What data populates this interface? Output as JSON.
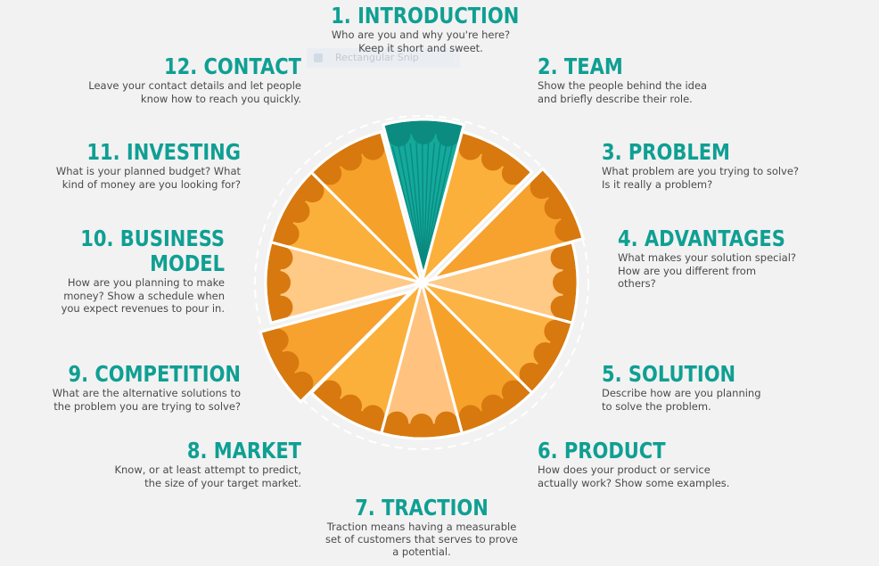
{
  "overlay": {
    "tooltip": "Rectangular Snip"
  },
  "steps": [
    {
      "title": "1. INTRODUCTION",
      "desc": "Who are you and why you're here?\nKeep it short and sweet."
    },
    {
      "title": "2. TEAM",
      "desc": "Show the people behind the idea\nand briefly describe their role."
    },
    {
      "title": "3. PROBLEM",
      "desc": "What problem are you trying to solve?\nIs it really a problem?"
    },
    {
      "title": "4. ADVANTAGES",
      "desc": "What makes your solution special?\nHow are you different from\nothers?"
    },
    {
      "title": "5. SOLUTION",
      "desc": "Describe how are you planning\nto solve the problem."
    },
    {
      "title": "6. PRODUCT",
      "desc": "How does your product or service\nactually work? Show some examples."
    },
    {
      "title": "7. TRACTION",
      "desc": "Traction means having a measurable\nset of customers that serves to prove\na potential."
    },
    {
      "title": "8. MARKET",
      "desc": "Know, or at least attempt to predict,\nthe size of your target market."
    },
    {
      "title": "9. COMPETITION",
      "desc": "What are the alternative solutions to\nthe problem you are trying to solve?"
    },
    {
      "title": "10. BUSINESS\nMODEL",
      "desc": "How are you planning to make\nmoney? Show a schedule when\nyou expect revenues to pour in."
    },
    {
      "title": "11. INVESTING",
      "desc": "What is your planned budget? What\nkind of money are you looking for?"
    },
    {
      "title": "12. CONTACT",
      "desc": "Leave your contact details and let people\nknow how to reach you quickly."
    }
  ],
  "colors": {
    "accent": "#0f9f93",
    "crust": "#d7790f",
    "slice_highlight": "#14a99b",
    "slice_shades": [
      "#f6a22a",
      "#fbb03b",
      "#f7a12e",
      "#ffc986",
      "#fbb444",
      "#f6a22a",
      "#ffc37f",
      "#fbb03b",
      "#f7a12e",
      "#ffc986",
      "#fbb03b",
      "#f6a22a"
    ]
  }
}
